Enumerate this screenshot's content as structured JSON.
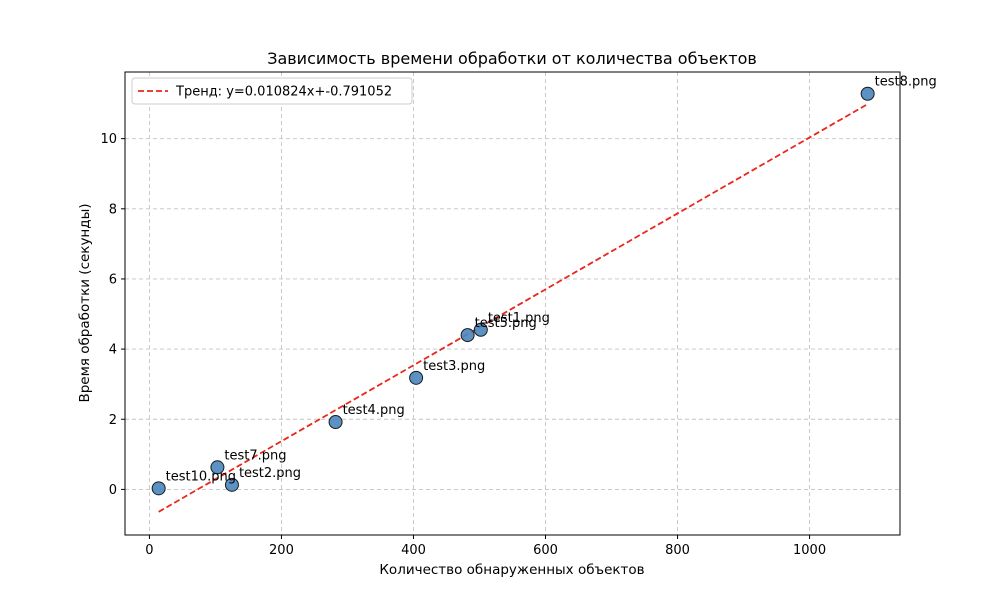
{
  "chart_data": {
    "type": "scatter",
    "title": "Зависимость времени обработки от количества объектов",
    "xlabel": "Количество обнаруженных объектов",
    "ylabel": "Время обработки (секунды)",
    "xlim": [
      -37,
      1137
    ],
    "ylim": [
      -1.3,
      11.9
    ],
    "xticks": [
      0,
      200,
      400,
      600,
      800,
      1000
    ],
    "yticks": [
      0,
      2,
      4,
      6,
      8,
      10
    ],
    "grid": true,
    "legend_position": "top-left",
    "point_color": "#4a86bd",
    "trend_color": "#e8271d",
    "points": [
      {
        "label": "test1.png",
        "x": 502,
        "y": 4.55
      },
      {
        "label": "test2.png",
        "x": 125,
        "y": 0.13
      },
      {
        "label": "test3.png",
        "x": 404,
        "y": 3.18
      },
      {
        "label": "test4.png",
        "x": 282,
        "y": 1.92
      },
      {
        "label": "test5.png",
        "x": 482,
        "y": 4.4
      },
      {
        "label": "test7.png",
        "x": 103,
        "y": 0.63
      },
      {
        "label": "test8.png",
        "x": 1088,
        "y": 11.28
      },
      {
        "label": "test10.png",
        "x": 14,
        "y": 0.03
      }
    ],
    "trend": {
      "label": "Тренд: y=0.010824x+-0.791052",
      "slope": 0.010824,
      "intercept": -0.791052,
      "x_range": [
        14,
        1088
      ]
    }
  }
}
